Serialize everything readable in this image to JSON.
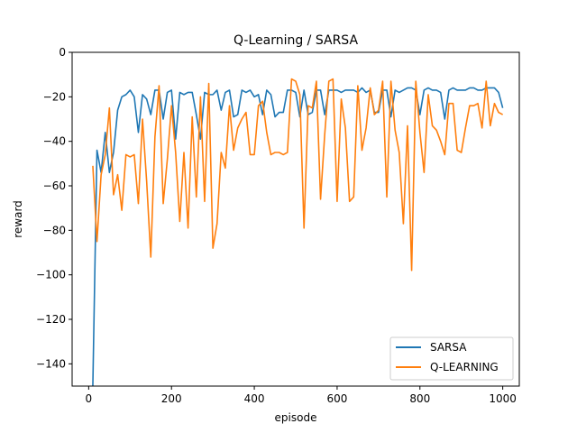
{
  "chart_data": {
    "type": "line",
    "title": "Q-Learning / SARSA",
    "xlabel": "episode",
    "ylabel": "reward",
    "xlim": [
      -40,
      1040
    ],
    "ylim": [
      -150,
      0
    ],
    "xticks": [
      0,
      200,
      400,
      600,
      800,
      1000
    ],
    "yticks": [
      0,
      -20,
      -40,
      -60,
      -80,
      -100,
      -120,
      -140
    ],
    "grid": false,
    "legend_position": "lower-right",
    "x": [
      10,
      20,
      30,
      40,
      50,
      60,
      70,
      80,
      90,
      100,
      110,
      120,
      130,
      140,
      150,
      160,
      170,
      180,
      190,
      200,
      210,
      220,
      230,
      240,
      250,
      260,
      270,
      280,
      290,
      300,
      310,
      320,
      330,
      340,
      350,
      360,
      370,
      380,
      390,
      400,
      410,
      420,
      430,
      440,
      450,
      460,
      470,
      480,
      490,
      500,
      510,
      520,
      530,
      540,
      550,
      560,
      570,
      580,
      590,
      600,
      610,
      620,
      630,
      640,
      650,
      660,
      670,
      680,
      690,
      700,
      710,
      720,
      730,
      740,
      750,
      760,
      770,
      780,
      790,
      800,
      810,
      820,
      830,
      840,
      850,
      860,
      870,
      880,
      890,
      900,
      910,
      920,
      930,
      940,
      950,
      960,
      970,
      980,
      990,
      1000
    ],
    "series": [
      {
        "name": "SARSA",
        "color": "#1f77b4",
        "values": [
          -150,
          -44,
          -54,
          -36,
          -54,
          -45,
          -26,
          -20,
          -19,
          -17,
          -20,
          -36,
          -19,
          -21,
          -28,
          -17,
          -17,
          -30,
          -18,
          -17,
          -39,
          -18,
          -19,
          -18,
          -18,
          -28,
          -39,
          -18,
          -19,
          -19,
          -17,
          -26,
          -18,
          -17,
          -29,
          -28,
          -17,
          -18,
          -17,
          -20,
          -19,
          -28,
          -17,
          -19,
          -29,
          -27,
          -27,
          -17,
          -17,
          -18,
          -29,
          -17,
          -28,
          -27,
          -17,
          -17,
          -28,
          -17,
          -17,
          -17,
          -18,
          -17,
          -17,
          -17,
          -18,
          -16,
          -18,
          -17,
          -27,
          -27,
          -17,
          -17,
          -29,
          -17,
          -18,
          -17,
          -16,
          -16,
          -17,
          -28,
          -17,
          -16,
          -17,
          -17,
          -18,
          -30,
          -17,
          -16,
          -17,
          -17,
          -17,
          -16,
          -16,
          -17,
          -17,
          -16,
          -16,
          -16,
          -18,
          -25
        ]
      },
      {
        "name": "Q-LEARNING",
        "color": "#ff7f0e",
        "values": [
          -51,
          -85,
          -55,
          -46,
          -25,
          -64,
          -55,
          -71,
          -46,
          -47,
          -46,
          -68,
          -30,
          -58,
          -92,
          -38,
          -15,
          -68,
          -48,
          -24,
          -45,
          -76,
          -45,
          -79,
          -29,
          -65,
          -20,
          -67,
          -14,
          -88,
          -77,
          -45,
          -52,
          -24,
          -44,
          -34,
          -30,
          -27,
          -46,
          -46,
          -24,
          -22,
          -36,
          -46,
          -45,
          -45,
          -46,
          -45,
          -12,
          -13,
          -19,
          -79,
          -24,
          -25,
          -13,
          -66,
          -37,
          -13,
          -12,
          -67,
          -21,
          -34,
          -67,
          -65,
          -15,
          -44,
          -34,
          -16,
          -28,
          -26,
          -13,
          -65,
          -13,
          -35,
          -45,
          -77,
          -33,
          -98,
          -13,
          -36,
          -54,
          -19,
          -33,
          -35,
          -40,
          -46,
          -23,
          -23,
          -44,
          -45,
          -34,
          -24,
          -24,
          -23,
          -34,
          -13,
          -33,
          -23,
          -27,
          -28
        ]
      }
    ]
  }
}
